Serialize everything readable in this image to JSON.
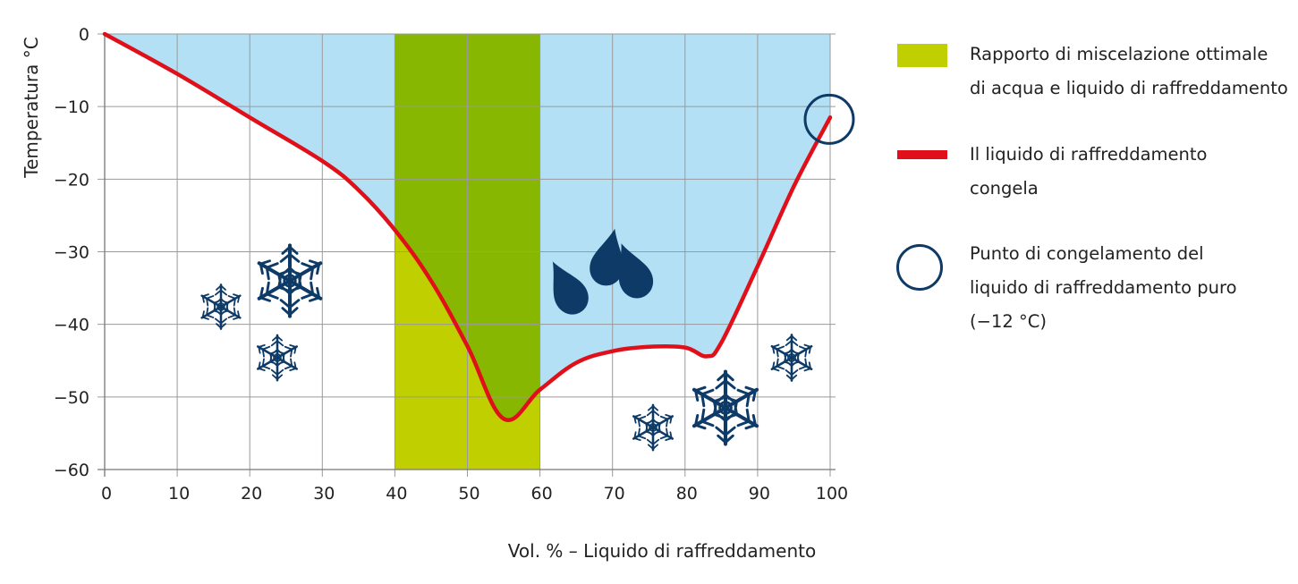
{
  "chart_data": {
    "type": "area",
    "xlabel": "Vol. % – Liquido di raffreddamento",
    "ylabel": "Temperatura °C",
    "xlim": [
      0,
      100
    ],
    "ylim": [
      -60,
      0
    ],
    "x_ticks": [
      "0",
      "10",
      "20",
      "30",
      "40",
      "50",
      "60",
      "70",
      "80",
      "90",
      "100"
    ],
    "y_ticks": [
      "0",
      "−10",
      "−20",
      "−30",
      "−40",
      "−50",
      "−60"
    ],
    "grid": true,
    "optimal_range": [
      40,
      60
    ],
    "series": [
      {
        "x": [
          0,
          10,
          20,
          30,
          35,
          40,
          45,
          50,
          55,
          60,
          65,
          70,
          75,
          80,
          83,
          85,
          90,
          95,
          100
        ],
        "y": [
          0,
          -5.5,
          -11.5,
          -17.5,
          -21.5,
          -27,
          -34,
          -43,
          -53,
          -49,
          -45.3,
          -43.7,
          -43.1,
          -43.2,
          -44.4,
          -42.5,
          -32,
          -21,
          -11.5
        ]
      }
    ],
    "pure_coolant_freezing_point": {
      "x": 100,
      "y": -12
    },
    "colors": {
      "frozen_area": "#b3e0f5",
      "optimal_mix": "#bfcf00",
      "optimal_mix_dark": "#87b700",
      "curve": "#e0101a",
      "marker": "#0d3a66",
      "icons": "#0d3a66",
      "grid": "#9a9a9a"
    },
    "icons": [
      "snowflake-icon",
      "water-drops-icon"
    ]
  },
  "legend": [
    {
      "type": "rect",
      "label_lines": [
        "Rapporto di miscelazione ottimale",
        "di acqua e liquido di raffreddamento"
      ]
    },
    {
      "type": "line",
      "label_lines": [
        "Il liquido di raffreddamento",
        "congela"
      ]
    },
    {
      "type": "circle",
      "label_lines": [
        "Punto di congelamento del",
        "liquido di raffreddamento puro",
        "(−12 °C)"
      ]
    }
  ]
}
